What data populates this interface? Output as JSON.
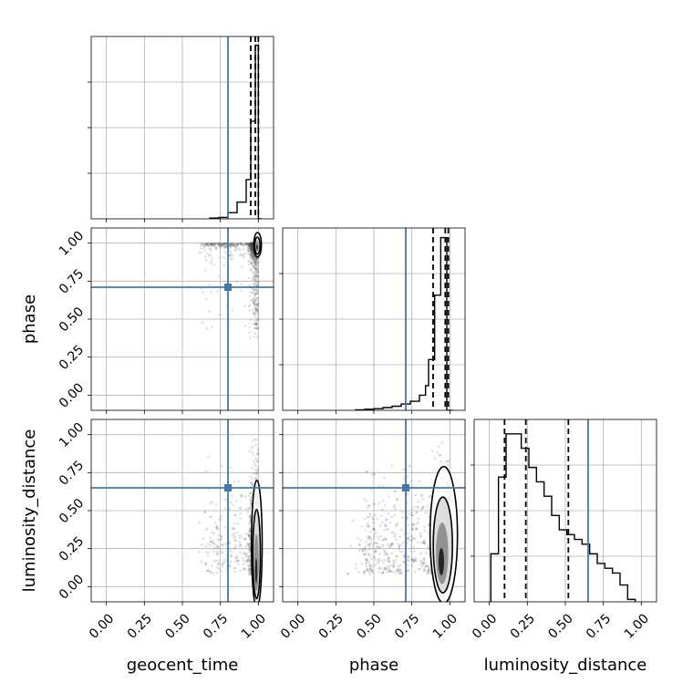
{
  "chart_data": {
    "type": "corner",
    "parameters": [
      "geocent_time",
      "phase",
      "luminosity_distance"
    ],
    "axis_range": [
      -0.1,
      1.1
    ],
    "tick_values": [
      0.0,
      0.25,
      0.5,
      0.75,
      1.0
    ],
    "tick_labels": [
      "0.00",
      "0.25",
      "0.50",
      "0.75",
      "1.00"
    ],
    "grid": true,
    "colors": {
      "truth": "#4477aa",
      "line": "#000000",
      "grid": "#b0b0b0",
      "points": "#555555"
    },
    "truths": {
      "geocent_time": 0.8,
      "phase": 0.71,
      "luminosity_distance": 0.65
    },
    "histograms": [
      {
        "parameter": "geocent_time",
        "bin_edges": [
          0.68,
          0.74,
          0.8,
          0.86,
          0.92,
          0.95,
          0.98,
          1.0,
          1.02
        ],
        "counts": [
          0.2,
          0.4,
          1.8,
          4.8,
          11.3,
          28.1,
          50,
          0
        ],
        "ylim": [
          0,
          52.5
        ],
        "quantiles": [
          0.95,
          0.98,
          1.0
        ]
      },
      {
        "parameter": "phase",
        "bin_edges": [
          0.38,
          0.44,
          0.5,
          0.56,
          0.62,
          0.68,
          0.74,
          0.8,
          0.84,
          0.86,
          0.9,
          0.94,
          0.98,
          1.02
        ],
        "counts": [
          0.2,
          0.4,
          0.6,
          1.0,
          1.5,
          2.3,
          3.3,
          5.5,
          9,
          18.5,
          42,
          63,
          0
        ],
        "ylim": [
          0,
          66.5
        ],
        "quantiles": [
          0.89,
          0.97,
          0.99
        ]
      },
      {
        "parameter": "luminosity_distance",
        "bin_edges": [
          0.01,
          0.06,
          0.11,
          0.16,
          0.21,
          0.26,
          0.31,
          0.36,
          0.41,
          0.46,
          0.51,
          0.56,
          0.61,
          0.66,
          0.71,
          0.76,
          0.81,
          0.86,
          0.91,
          0.96
        ],
        "counts": [
          20,
          52,
          70,
          70,
          64,
          56,
          50,
          44,
          36,
          30,
          28,
          26,
          24,
          20,
          16,
          14,
          12,
          7,
          1
        ],
        "ylim": [
          0,
          76
        ],
        "quantiles": [
          0.1,
          0.24,
          0.52
        ]
      }
    ]
  }
}
